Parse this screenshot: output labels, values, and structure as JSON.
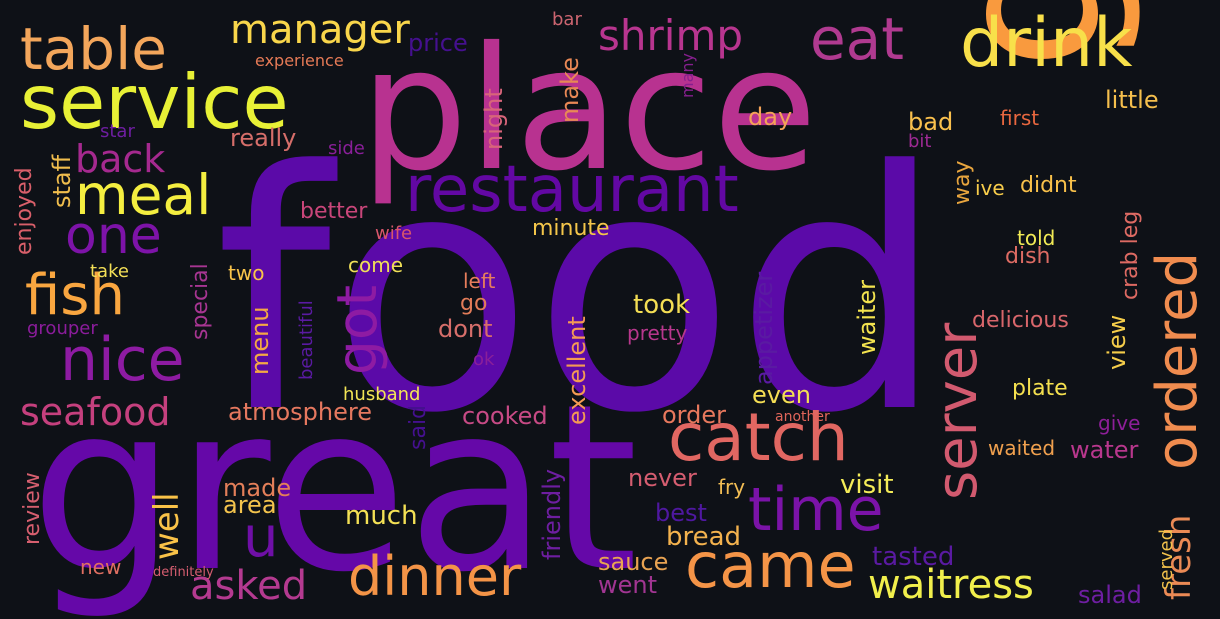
{
  "cloud": {
    "words": [
      {
        "id": "food",
        "text": "food",
        "color": "#5b0aa8"
      },
      {
        "id": "great",
        "text": "great",
        "color": "#6508a8"
      },
      {
        "id": "place",
        "text": "place",
        "color": "#b83290"
      },
      {
        "id": "good",
        "text": "good",
        "color": "#f99a3e"
      },
      {
        "id": "service",
        "text": "service",
        "color": "#e8f136"
      },
      {
        "id": "restaurant",
        "text": "restaurant",
        "color": "#6308a3"
      },
      {
        "id": "drink",
        "text": "drink",
        "color": "#f8e04a"
      },
      {
        "id": "table",
        "text": "table",
        "color": "#f3a65b"
      },
      {
        "id": "meal",
        "text": "meal",
        "color": "#f4ee40"
      },
      {
        "id": "eat",
        "text": "eat",
        "color": "#b03a90"
      },
      {
        "id": "manager",
        "text": "manager",
        "color": "#f9d64b"
      },
      {
        "id": "shrimp",
        "text": "shrimp",
        "color": "#b8358f"
      },
      {
        "id": "fish",
        "text": "fish",
        "color": "#f9a640"
      },
      {
        "id": "one",
        "text": "one",
        "color": "#7d13a8"
      },
      {
        "id": "back",
        "text": "back",
        "color": "#a5298f"
      },
      {
        "id": "nice",
        "text": "nice",
        "color": "#8e1ba3"
      },
      {
        "id": "got",
        "text": "got",
        "color": "#8e1ba3"
      },
      {
        "id": "ordered",
        "text": "ordered",
        "color": "#f08c4f"
      },
      {
        "id": "server",
        "text": "server",
        "color": "#d25a6f"
      },
      {
        "id": "catch",
        "text": "catch",
        "color": "#e16762"
      },
      {
        "id": "time",
        "text": "time",
        "color": "#7b13a8"
      },
      {
        "id": "came",
        "text": "came",
        "color": "#f49447"
      },
      {
        "id": "dinner",
        "text": "dinner",
        "color": "#f49447"
      },
      {
        "id": "u",
        "text": "u",
        "color": "#6f0fa7"
      },
      {
        "id": "seafood",
        "text": "seafood",
        "color": "#c5407e"
      },
      {
        "id": "asked",
        "text": "asked",
        "color": "#b43a90"
      },
      {
        "id": "well",
        "text": "well",
        "color": "#f9c248"
      },
      {
        "id": "waitress",
        "text": "waitress",
        "color": "#f1ef4c"
      },
      {
        "id": "fresh",
        "text": "fresh",
        "color": "#eb8a55"
      },
      {
        "id": "price",
        "text": "price",
        "color": "#45108f"
      },
      {
        "id": "experience",
        "text": "experience",
        "color": "#e67a56"
      },
      {
        "id": "bar",
        "text": "bar",
        "color": "#cc6570"
      },
      {
        "id": "many",
        "text": "many",
        "color": "#861f8e"
      },
      {
        "id": "night",
        "text": "night",
        "color": "#d8657a"
      },
      {
        "id": "make",
        "text": "make",
        "color": "#e88855"
      },
      {
        "id": "day",
        "text": "day",
        "color": "#f4a257"
      },
      {
        "id": "little",
        "text": "little",
        "color": "#f5bf4d"
      },
      {
        "id": "bad",
        "text": "bad",
        "color": "#f9c04d"
      },
      {
        "id": "first",
        "text": "first",
        "color": "#e8673f"
      },
      {
        "id": "bit",
        "text": "bit",
        "color": "#9d2a93"
      },
      {
        "id": "really",
        "text": "really",
        "color": "#d66e6a"
      },
      {
        "id": "star",
        "text": "star",
        "color": "#6e1ea1"
      },
      {
        "id": "side",
        "text": "side",
        "color": "#8a1f9a"
      },
      {
        "id": "staff",
        "text": "staff",
        "color": "#f0bd4d"
      },
      {
        "id": "enjoyed",
        "text": "enjoyed",
        "color": "#d95f6a"
      },
      {
        "id": "better",
        "text": "better",
        "color": "#c9467a"
      },
      {
        "id": "wife",
        "text": "wife",
        "color": "#d8566b"
      },
      {
        "id": "minute",
        "text": "minute",
        "color": "#f4c64a"
      },
      {
        "id": "way",
        "text": "way",
        "color": "#e8a53e"
      },
      {
        "id": "ive",
        "text": "ive",
        "color": "#f8cd4b"
      },
      {
        "id": "didnt",
        "text": "didnt",
        "color": "#f8c04a"
      },
      {
        "id": "crab_leg",
        "text": "crab leg",
        "color": "#dd6a63"
      },
      {
        "id": "told",
        "text": "told",
        "color": "#f1ea55"
      },
      {
        "id": "dish",
        "text": "dish",
        "color": "#dd6b63"
      },
      {
        "id": "take",
        "text": "take",
        "color": "#f3df57"
      },
      {
        "id": "two",
        "text": "two",
        "color": "#f8c34a"
      },
      {
        "id": "come",
        "text": "come",
        "color": "#f0e058"
      },
      {
        "id": "left",
        "text": "left",
        "color": "#e77e5c"
      },
      {
        "id": "go",
        "text": "go",
        "color": "#e27c59"
      },
      {
        "id": "dont",
        "text": "dont",
        "color": "#d66e6a"
      },
      {
        "id": "took",
        "text": "took",
        "color": "#f4de54"
      },
      {
        "id": "pretty",
        "text": "pretty",
        "color": "#b8378d"
      },
      {
        "id": "appetizer",
        "text": "appetizer",
        "color": "#5a1aa2"
      },
      {
        "id": "waiter",
        "text": "waiter",
        "color": "#f3e34f"
      },
      {
        "id": "delicious",
        "text": "delicious",
        "color": "#d8666b"
      },
      {
        "id": "view",
        "text": "view",
        "color": "#f5cd4a"
      },
      {
        "id": "grouper",
        "text": "grouper",
        "color": "#8b1c9b"
      },
      {
        "id": "special",
        "text": "special",
        "color": "#a73592"
      },
      {
        "id": "menu",
        "text": "menu",
        "color": "#f4a844"
      },
      {
        "id": "beautiful",
        "text": "beautiful",
        "color": "#5a1aa2"
      },
      {
        "id": "ok",
        "text": "ok",
        "color": "#8a1f9a"
      },
      {
        "id": "excellent",
        "text": "excellent",
        "color": "#f49a54"
      },
      {
        "id": "plate",
        "text": "plate",
        "color": "#f4e04f"
      },
      {
        "id": "husband",
        "text": "husband",
        "color": "#f2e556"
      },
      {
        "id": "atmosphere",
        "text": "atmosphere",
        "color": "#e6785f"
      },
      {
        "id": "said",
        "text": "said",
        "color": "#45108f"
      },
      {
        "id": "even",
        "text": "even",
        "color": "#f4de54"
      },
      {
        "id": "another",
        "text": "another",
        "color": "#e0655a"
      },
      {
        "id": "give",
        "text": "give",
        "color": "#8d1f98"
      },
      {
        "id": "cooked",
        "text": "cooked",
        "color": "#c74a85"
      },
      {
        "id": "order",
        "text": "order",
        "color": "#e8785d"
      },
      {
        "id": "waited",
        "text": "waited",
        "color": "#f0a04e"
      },
      {
        "id": "water",
        "text": "water",
        "color": "#b8378d"
      },
      {
        "id": "review",
        "text": "review",
        "color": "#d65f6f"
      },
      {
        "id": "made",
        "text": "made",
        "color": "#e37f59"
      },
      {
        "id": "area",
        "text": "area",
        "color": "#f4c44d"
      },
      {
        "id": "friendly",
        "text": "friendly",
        "color": "#6e1ea1"
      },
      {
        "id": "never",
        "text": "never",
        "color": "#d55d70"
      },
      {
        "id": "fry",
        "text": "fry",
        "color": "#f3be55"
      },
      {
        "id": "visit",
        "text": "visit",
        "color": "#f4ec58"
      },
      {
        "id": "best",
        "text": "best",
        "color": "#4f18a0"
      },
      {
        "id": "bread",
        "text": "bread",
        "color": "#f3b24e"
      },
      {
        "id": "tasted",
        "text": "tasted",
        "color": "#5a1aa2"
      },
      {
        "id": "served",
        "text": "served",
        "color": "#f3c24c"
      },
      {
        "id": "much",
        "text": "much",
        "color": "#f4e155"
      },
      {
        "id": "sauce",
        "text": "sauce",
        "color": "#e8a352"
      },
      {
        "id": "went",
        "text": "went",
        "color": "#a13592"
      },
      {
        "id": "new",
        "text": "new",
        "color": "#e06f62"
      },
      {
        "id": "definitely",
        "text": "definitely",
        "color": "#d55d70"
      },
      {
        "id": "salad",
        "text": "salad",
        "color": "#6e1ea1"
      }
    ]
  }
}
